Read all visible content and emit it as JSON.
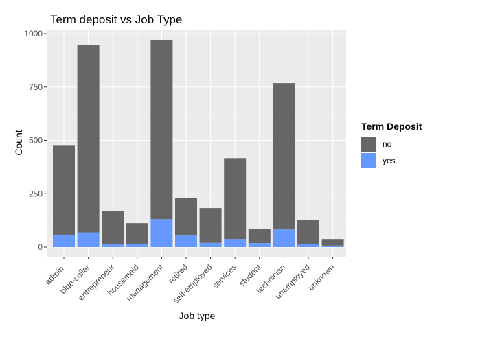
{
  "chart_data": {
    "type": "bar",
    "stacked": true,
    "title": "Term deposit vs Job Type",
    "xlabel": "Job type",
    "ylabel": "Count",
    "categories": [
      "admin.",
      "blue-collar",
      "entrepreneur",
      "housemaid",
      "management",
      "retired",
      "self-employed",
      "services",
      "student",
      "technician",
      "unemployed",
      "unknown"
    ],
    "series": [
      {
        "name": "no",
        "color": "#666666",
        "values": [
          420,
          877,
          153,
          98,
          838,
          176,
          163,
          379,
          65,
          685,
          115,
          31
        ]
      },
      {
        "name": "yes",
        "color": "#6699ff",
        "values": [
          58,
          69,
          15,
          14,
          131,
          54,
          20,
          38,
          19,
          83,
          13,
          7
        ]
      }
    ],
    "yticks": [
      0,
      250,
      500,
      750,
      1000
    ],
    "ylim": [
      0,
      1000
    ],
    "legend": {
      "title": "Term Deposit",
      "position": "right"
    },
    "grid": true
  }
}
